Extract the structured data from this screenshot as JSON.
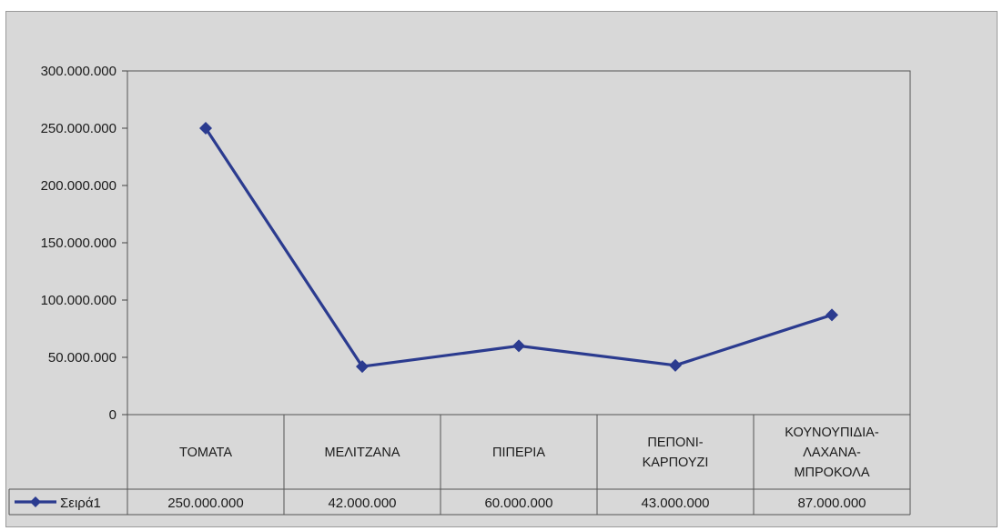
{
  "chart_data": {
    "type": "line",
    "categories": [
      [
        "ΤΟΜΑΤΑ"
      ],
      [
        "ΜΕΛΙΤΖΑΝΑ"
      ],
      [
        "ΠΙΠΕΡΙΑ"
      ],
      [
        "ΠΕΠΟΝΙ-",
        "ΚΑΡΠΟΥΖΙ"
      ],
      [
        "ΚΟΥΝΟΥΠΙΔΙΑ-",
        "ΛΑΧΑΝΑ-",
        "ΜΠΡΟΚΟΛΑ"
      ]
    ],
    "series": [
      {
        "name": "Σειρά1",
        "values": [
          250000000,
          42000000,
          60000000,
          43000000,
          87000000
        ],
        "value_labels": [
          "250.000.000",
          "42.000.000",
          "60.000.000",
          "43.000.000",
          "87.000.000"
        ],
        "color": "#2b3b8f",
        "marker": "diamond"
      }
    ],
    "ylim": [
      0,
      300000000
    ],
    "ytick_labels": [
      "0",
      "50.000.000",
      "100.000.000",
      "150.000.000",
      "200.000.000",
      "250.000.000",
      "300.000.000"
    ],
    "grid": false,
    "data_table": true,
    "plot_background": "#d8d8d8",
    "title": "",
    "xlabel": "",
    "ylabel": ""
  }
}
